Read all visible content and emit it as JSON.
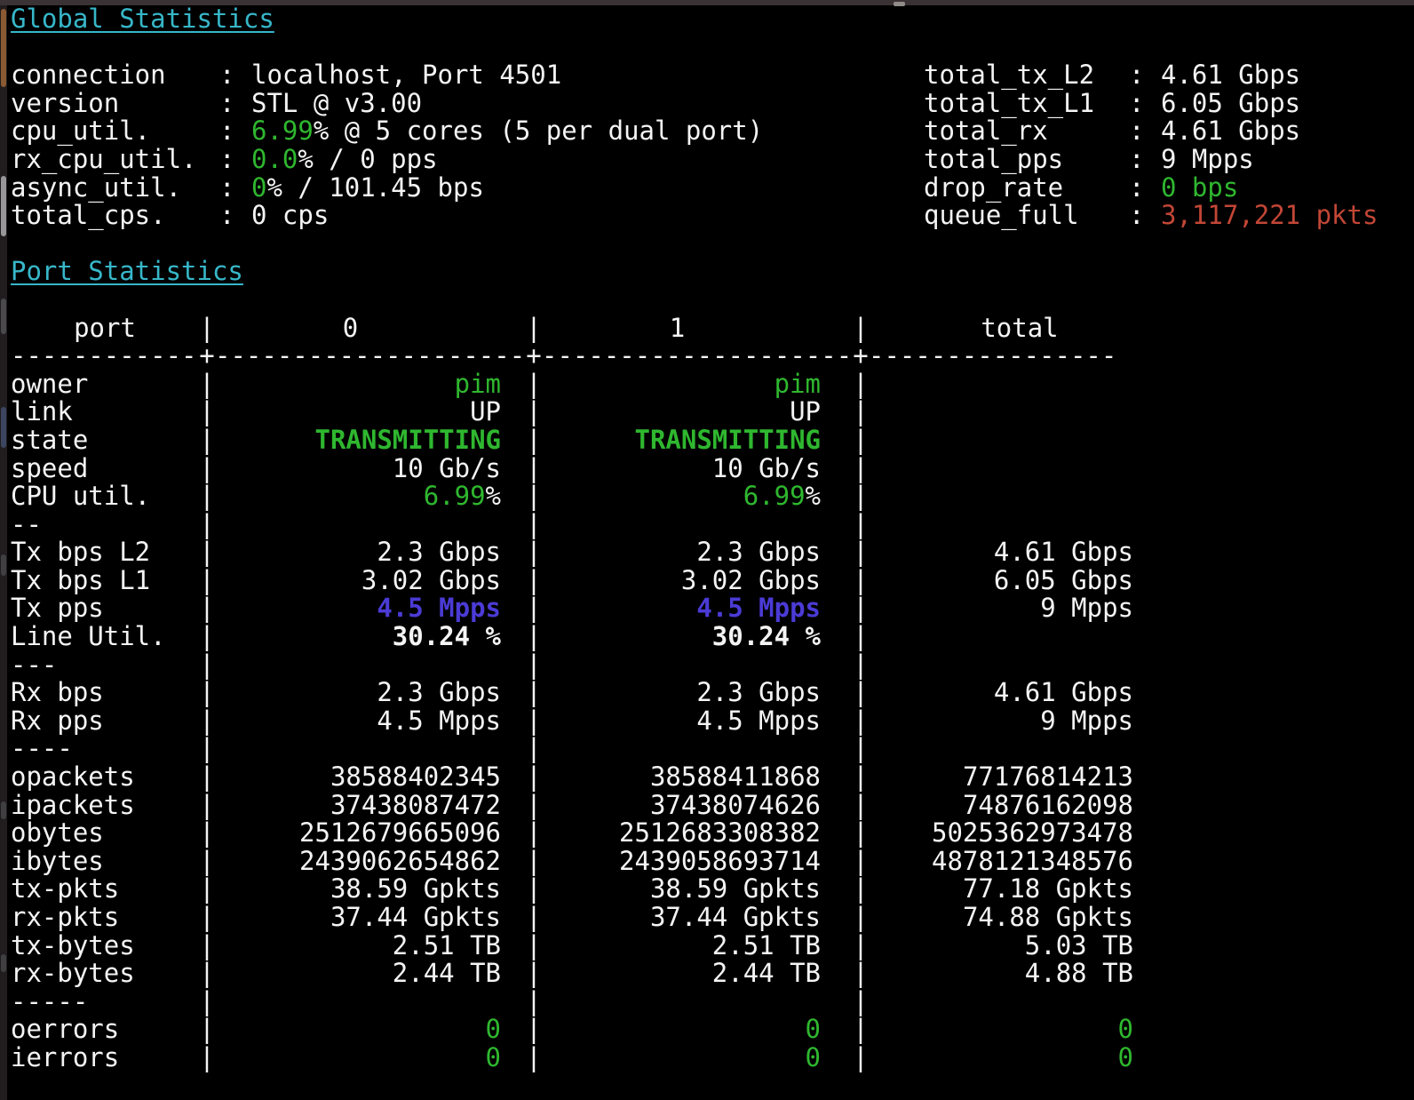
{
  "colors": {
    "background": "#000000",
    "text": "#f4f4f4",
    "heading_cyan": "#37b7c9",
    "ok_green": "#2fb72f",
    "pps_blue": "#4b3bd6",
    "alert_red": "#c24636"
  },
  "glyphs": {
    "pipe": "|",
    "colon": ":",
    "plus": "+"
  },
  "global": {
    "title": "Global Statistics",
    "left": [
      {
        "label": "connection",
        "value": "localhost, Port 4501"
      },
      {
        "label": "version",
        "value": "STL @ v3.00"
      },
      {
        "label": "cpu_util.",
        "highlight": "6.99",
        "rest": "% @ 5 cores (5 per dual port)"
      },
      {
        "label": "rx_cpu_util.",
        "highlight": "0.0",
        "rest": "% / 0 pps"
      },
      {
        "label": "async_util.",
        "highlight": "0",
        "rest": "% / 101.45 bps"
      },
      {
        "label": "total_cps.",
        "value": "0 cps"
      }
    ],
    "right": [
      {
        "label": "total_tx_L2",
        "value": "4.61 Gbps"
      },
      {
        "label": "total_tx_L1",
        "value": "6.05 Gbps"
      },
      {
        "label": "total_rx",
        "value": "4.61 Gbps"
      },
      {
        "label": "total_pps",
        "value": "9 Mpps"
      },
      {
        "label": "drop_rate",
        "value": "0 bps"
      },
      {
        "label": "queue_full",
        "value": "3,117,221 pkts"
      }
    ]
  },
  "ports": {
    "title": "Port Statistics",
    "header": {
      "label": "port",
      "col0": "0",
      "col1": "1",
      "total": "total"
    },
    "ruler": {
      "label": "------------",
      "col0": "--------------------",
      "col1": "--------------------",
      "total": "----------------"
    },
    "rows": [
      {
        "label": "owner",
        "v0": "pim",
        "v1": "pim",
        "vt": ""
      },
      {
        "label": "link",
        "v0": "UP",
        "v1": "UP",
        "vt": ""
      },
      {
        "label": "state",
        "v0": "TRANSMITTING",
        "v1": "TRANSMITTING",
        "vt": ""
      },
      {
        "label": "speed",
        "v0": "10 Gb/s",
        "v1": "10 Gb/s",
        "vt": ""
      },
      {
        "label": "CPU util.",
        "v0": "6.99",
        "v0_pct": "%",
        "v1": "6.99",
        "v1_pct": "%",
        "vt": ""
      },
      {
        "label": "--",
        "v0": "",
        "v1": "",
        "vt": ""
      },
      {
        "label": "Tx bps L2",
        "v0": "2.3 Gbps",
        "v1": "2.3 Gbps",
        "vt": "4.61 Gbps"
      },
      {
        "label": "Tx bps L1",
        "v0": "3.02 Gbps",
        "v1": "3.02 Gbps",
        "vt": "6.05 Gbps"
      },
      {
        "label": "Tx pps",
        "v0": "4.5 Mpps",
        "v1": "4.5 Mpps",
        "vt": "9 Mpps"
      },
      {
        "label": "Line Util.",
        "v0": "30.24 %",
        "v1": "30.24 %",
        "vt": ""
      },
      {
        "label": "---",
        "v0": "",
        "v1": "",
        "vt": ""
      },
      {
        "label": "Rx bps",
        "v0": "2.3 Gbps",
        "v1": "2.3 Gbps",
        "vt": "4.61 Gbps"
      },
      {
        "label": "Rx pps",
        "v0": "4.5 Mpps",
        "v1": "4.5 Mpps",
        "vt": "9 Mpps"
      },
      {
        "label": "----",
        "v0": "",
        "v1": "",
        "vt": ""
      },
      {
        "label": "opackets",
        "v0": "38588402345",
        "v1": "38588411868",
        "vt": "77176814213"
      },
      {
        "label": "ipackets",
        "v0": "37438087472",
        "v1": "37438074626",
        "vt": "74876162098"
      },
      {
        "label": "obytes",
        "v0": "2512679665096",
        "v1": "2512683308382",
        "vt": "5025362973478"
      },
      {
        "label": "ibytes",
        "v0": "2439062654862",
        "v1": "2439058693714",
        "vt": "4878121348576"
      },
      {
        "label": "tx-pkts",
        "v0": "38.59 Gpkts",
        "v1": "38.59 Gpkts",
        "vt": "77.18 Gpkts"
      },
      {
        "label": "rx-pkts",
        "v0": "37.44 Gpkts",
        "v1": "37.44 Gpkts",
        "vt": "74.88 Gpkts"
      },
      {
        "label": "tx-bytes",
        "v0": "2.51 TB",
        "v1": "2.51 TB",
        "vt": "5.03 TB"
      },
      {
        "label": "rx-bytes",
        "v0": "2.44 TB",
        "v1": "2.44 TB",
        "vt": "4.88 TB"
      },
      {
        "label": "-----",
        "v0": "",
        "v1": "",
        "vt": ""
      },
      {
        "label": "oerrors",
        "v0": "0",
        "v1": "0",
        "vt": "0"
      },
      {
        "label": "ierrors",
        "v0": "0",
        "v1": "0",
        "vt": "0"
      }
    ]
  }
}
